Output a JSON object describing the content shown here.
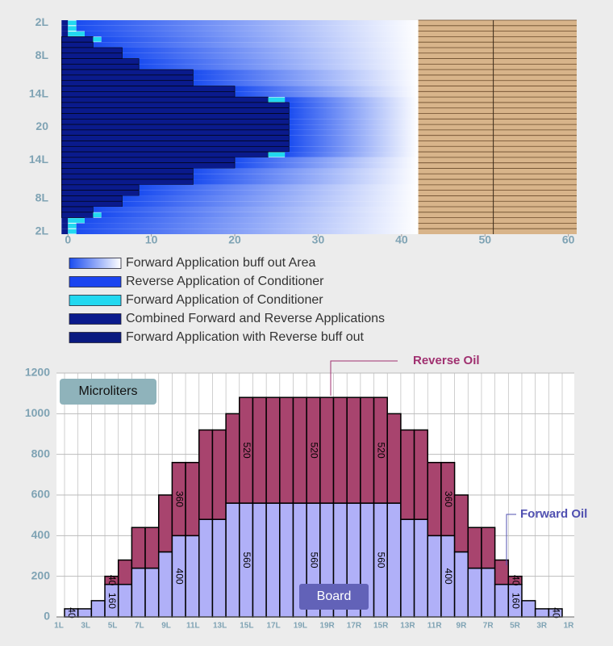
{
  "chart_data": [
    {
      "type": "lane_map",
      "categories": [
        "2L",
        null,
        null,
        null,
        null,
        null,
        "8L",
        null,
        null,
        null,
        null,
        null,
        null,
        "14L",
        null,
        null,
        null,
        null,
        null,
        "20",
        null,
        null,
        null,
        null,
        null,
        "14L",
        null,
        null,
        null,
        null,
        null,
        null,
        "8L",
        null,
        null,
        null,
        null,
        null,
        "2L"
      ],
      "series": [
        {
          "name": "Combined Forward and Reverse Applications",
          "color": "#0a1a8c",
          "values": [
            0,
            0,
            0,
            3,
            3,
            6.5,
            6.5,
            8.5,
            8.5,
            15,
            15,
            15,
            20,
            20,
            24,
            26.5,
            26.5,
            26.5,
            26.5,
            26.5,
            26.5,
            26.5,
            26.5,
            26.5,
            24,
            20,
            20,
            15,
            15,
            15,
            8.5,
            8.5,
            6.5,
            6.5,
            3,
            3,
            0,
            0,
            0
          ]
        },
        {
          "name": "Forward Application of Conditioner",
          "color": "#22d8f0",
          "values": [
            1,
            1,
            2,
            1,
            0,
            0,
            0,
            0,
            0,
            0,
            0,
            0,
            0,
            0,
            2,
            0,
            0,
            0,
            0,
            0,
            0,
            0,
            0,
            0,
            2,
            0,
            0,
            0,
            0,
            0,
            0,
            0,
            0,
            0,
            0,
            1,
            2,
            1,
            1
          ]
        }
      ],
      "legend": [
        {
          "name": "Forward Application buff out Area",
          "colors": [
            "#1a4cf0",
            "#ffffff"
          ]
        },
        {
          "name": "Reverse Application of Conditioner",
          "colors": [
            "#1a44f0"
          ]
        },
        {
          "name": "Forward Application of Conditioner",
          "colors": [
            "#22d8f0"
          ]
        },
        {
          "name": "Combined Forward and Reverse Applications",
          "colors": [
            "#0a1a8c"
          ]
        },
        {
          "name": "Forward Application with Reverse buff out",
          "colors": [
            "#0a1a80"
          ]
        }
      ],
      "buff_end": 42,
      "board_start": 42,
      "board_line": 51,
      "board_color": "#d8b48a",
      "xlim": [
        -0.8,
        61
      ],
      "xticks": [
        0,
        10,
        20,
        30,
        40,
        50,
        60
      ]
    },
    {
      "type": "bar",
      "stacked": true,
      "x_labels": [
        "1L",
        "3L",
        "5L",
        "7L",
        "9L",
        "11L",
        "13L",
        "15L",
        "17L",
        "19L",
        "19R",
        "17R",
        "15R",
        "13R",
        "11R",
        "9R",
        "7R",
        "5R",
        "3R",
        "1R"
      ],
      "series": [
        {
          "name": "Forward Oil",
          "color": "#b0b0f8",
          "label_color": "#5050b0",
          "values": [
            40,
            40,
            80,
            160,
            160,
            240,
            240,
            320,
            400,
            400,
            480,
            480,
            560,
            560,
            560,
            560,
            560,
            560,
            560,
            560,
            560,
            560,
            560,
            560,
            560,
            480,
            480,
            400,
            400,
            320,
            240,
            240,
            160,
            160,
            80,
            40,
            40
          ],
          "value_labels": [
            40,
            null,
            null,
            160,
            null,
            null,
            null,
            null,
            400,
            null,
            null,
            null,
            null,
            560,
            null,
            null,
            null,
            null,
            560,
            null,
            null,
            null,
            null,
            560,
            null,
            null,
            null,
            null,
            400,
            null,
            null,
            null,
            null,
            160,
            null,
            null,
            40
          ]
        },
        {
          "name": "Reverse Oil",
          "color": "#a8446e",
          "label_color": "#a03070",
          "values": [
            0,
            0,
            0,
            40,
            120,
            200,
            200,
            280,
            360,
            360,
            440,
            440,
            440,
            520,
            520,
            520,
            520,
            520,
            520,
            520,
            520,
            520,
            520,
            520,
            440,
            440,
            440,
            360,
            360,
            280,
            200,
            200,
            120,
            40,
            0,
            0,
            0
          ],
          "value_labels": [
            null,
            null,
            null,
            40,
            null,
            null,
            null,
            null,
            360,
            null,
            null,
            null,
            null,
            520,
            null,
            null,
            null,
            null,
            520,
            null,
            null,
            null,
            null,
            520,
            null,
            null,
            null,
            null,
            360,
            null,
            null,
            null,
            null,
            40,
            null,
            null,
            null
          ]
        }
      ],
      "annotations": [
        "Microliters",
        "Board"
      ],
      "ylim": [
        0,
        1200
      ],
      "yticks": [
        0,
        200,
        400,
        600,
        800,
        1000,
        1200
      ],
      "grid": true
    }
  ]
}
